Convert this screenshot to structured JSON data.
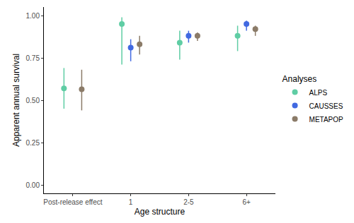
{
  "chart_data": {
    "type": "dot_errorbar",
    "x_label": "Age structure",
    "y_label": "Apparent annual survival",
    "legend_title": "Analyses",
    "legend": "right",
    "grid": false,
    "categories": [
      "Post-release effect",
      "1",
      "2-5",
      "6+"
    ],
    "ylim": [
      -0.05,
      1.05
    ],
    "yticks": [
      {
        "value": 0,
        "label": "0.00"
      },
      {
        "value": 0.25,
        "label": "0.25"
      },
      {
        "value": 0.5,
        "label": "0.50"
      },
      {
        "value": 0.75,
        "label": "0.75"
      },
      {
        "value": 1,
        "label": "1.00"
      }
    ],
    "series": [
      {
        "name": "ALPS",
        "color": "#5fcda4",
        "values": [
          0.57,
          0.95,
          0.84,
          0.88
        ],
        "lower": [
          0.45,
          0.71,
          0.74,
          0.79
        ],
        "upper": [
          0.69,
          0.99,
          0.91,
          0.94
        ]
      },
      {
        "name": "CAUSSES",
        "color": "#4169e1",
        "values": [
          null,
          0.81,
          0.88,
          0.95
        ],
        "lower": [
          null,
          0.73,
          0.84,
          0.91
        ],
        "upper": [
          null,
          0.86,
          0.91,
          0.97
        ]
      },
      {
        "name": "METAPOP",
        "color": "#8b7b68",
        "values": [
          0.565,
          0.83,
          0.88,
          0.92
        ],
        "lower": [
          0.44,
          0.77,
          0.85,
          0.88
        ],
        "upper": [
          0.68,
          0.88,
          0.9,
          0.94
        ]
      }
    ]
  }
}
